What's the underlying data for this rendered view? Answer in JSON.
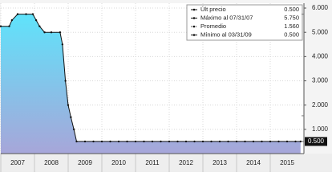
{
  "chart_data": {
    "type": "area",
    "x": [
      2007.0,
      2007.25,
      2007.33,
      2007.5,
      2007.75,
      2007.95,
      2008.05,
      2008.15,
      2008.3,
      2008.5,
      2008.76,
      2008.83,
      2008.92,
      2009.0,
      2009.08,
      2009.17,
      2009.25,
      2009.5,
      2009.75,
      2010.0,
      2010.25,
      2010.5,
      2010.75,
      2011.0,
      2011.25,
      2011.5,
      2011.75,
      2012.0,
      2012.25,
      2012.5,
      2012.75,
      2013.0,
      2013.25,
      2013.5,
      2013.75,
      2014.0,
      2014.25,
      2014.5,
      2014.75,
      2015.0,
      2015.25,
      2015.5,
      2015.75,
      2015.9
    ],
    "values": [
      5.25,
      5.25,
      5.5,
      5.75,
      5.75,
      5.75,
      5.5,
      5.25,
      5.0,
      5.0,
      5.0,
      4.5,
      3.0,
      2.0,
      1.5,
      1.0,
      0.5,
      0.5,
      0.5,
      0.5,
      0.5,
      0.5,
      0.5,
      0.5,
      0.5,
      0.5,
      0.5,
      0.5,
      0.5,
      0.5,
      0.5,
      0.5,
      0.5,
      0.5,
      0.5,
      0.5,
      0.5,
      0.5,
      0.5,
      0.5,
      0.5,
      0.5,
      0.5,
      0.5
    ],
    "color": "#111111",
    "xlim": [
      2007,
      2016
    ],
    "xticks": [
      2007,
      2008,
      2009,
      2010,
      2011,
      2012,
      2013,
      2014,
      2015
    ],
    "ylim": [
      0,
      6.2
    ],
    "yticks": [
      {
        "value": 1,
        "label": "1.000"
      },
      {
        "value": 2,
        "label": "2.000"
      },
      {
        "value": 3,
        "label": "3.000"
      },
      {
        "value": 4,
        "label": "4.000"
      },
      {
        "value": 5,
        "label": "5.000"
      },
      {
        "value": 6,
        "label": "6.000"
      }
    ],
    "grid": true,
    "last_value": {
      "value": 0.5,
      "label": "0.500"
    },
    "legend": [
      {
        "label": "Últ precio",
        "value": 0.5,
        "value_label": "0.500"
      },
      {
        "label": "Máximo al 07/31/07",
        "value": 5.75,
        "value_label": "5.750"
      },
      {
        "label": "Promedio",
        "value": 1.56,
        "value_label": "1.560"
      },
      {
        "label": "Mínimo al 03/31/09",
        "value": 0.5,
        "value_label": "0.500"
      }
    ],
    "legend_position": "upper right"
  }
}
